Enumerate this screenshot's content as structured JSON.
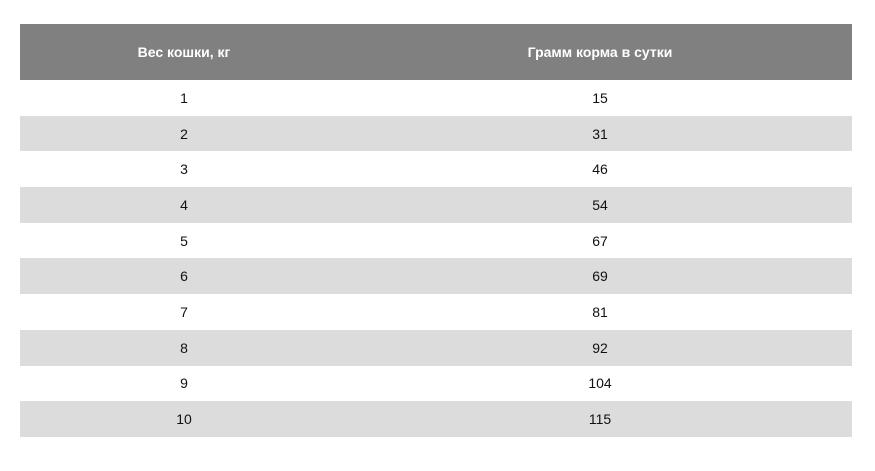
{
  "table": {
    "headers": [
      "Вес кошки, кг",
      "Грамм корма в сутки"
    ],
    "rows": [
      [
        "1",
        "15"
      ],
      [
        "2",
        "31"
      ],
      [
        "3",
        "46"
      ],
      [
        "4",
        "54"
      ],
      [
        "5",
        "67"
      ],
      [
        "6",
        "69"
      ],
      [
        "7",
        "81"
      ],
      [
        "8",
        "92"
      ],
      [
        "9",
        "104"
      ],
      [
        "10",
        "115"
      ]
    ]
  },
  "colors": {
    "header_bg": "#808080",
    "header_text": "#ffffff",
    "stripe_bg": "#dcdcdc",
    "row_bg": "#ffffff"
  }
}
